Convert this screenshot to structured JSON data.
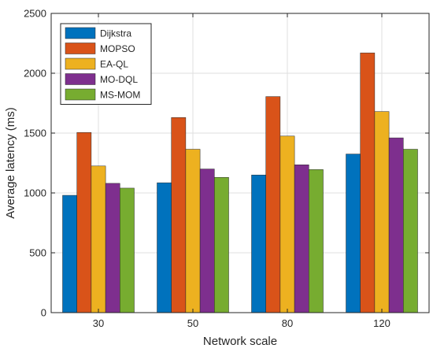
{
  "chart_data": {
    "type": "bar",
    "title": "",
    "xlabel": "Network scale",
    "ylabel": "Average latency (ms)",
    "categories": [
      "30",
      "50",
      "80",
      "120"
    ],
    "ylim": [
      0,
      2500
    ],
    "yticks": [
      0,
      500,
      1000,
      1500,
      2000,
      2500
    ],
    "grid": true,
    "legend_position": "top-left",
    "series": [
      {
        "name": "Dijkstra",
        "color": "#0072BD",
        "values": [
          980,
          1085,
          1150,
          1325
        ]
      },
      {
        "name": "MOPSO",
        "color": "#D95319",
        "values": [
          1505,
          1630,
          1805,
          2170
        ]
      },
      {
        "name": "EA-QL",
        "color": "#EDB120",
        "values": [
          1225,
          1365,
          1475,
          1680
        ]
      },
      {
        "name": "MO-DQL",
        "color": "#7E2F8E",
        "values": [
          1080,
          1200,
          1235,
          1460
        ]
      },
      {
        "name": "MS-MOM",
        "color": "#77AC30",
        "values": [
          1040,
          1130,
          1195,
          1365
        ]
      }
    ]
  }
}
